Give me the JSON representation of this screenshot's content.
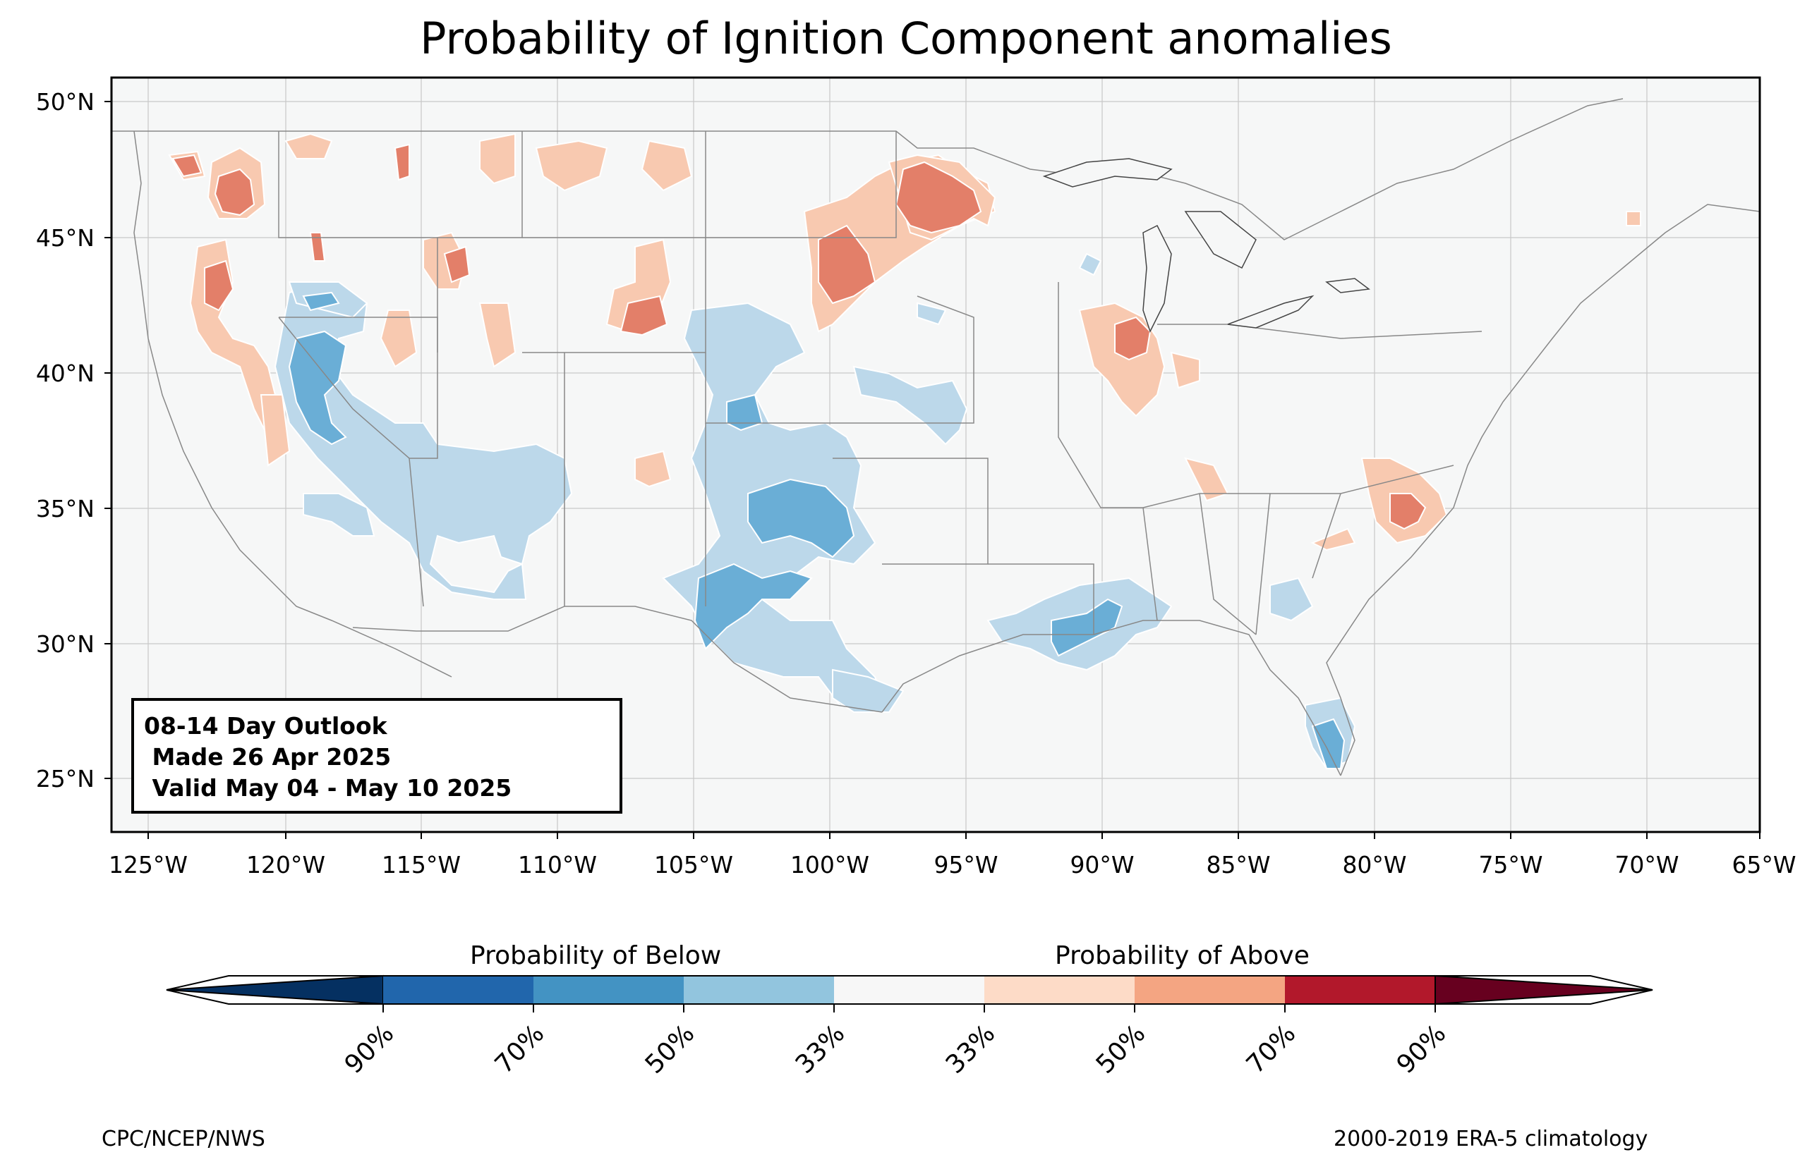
{
  "title": "Probability of Ignition Component anomalies",
  "map": {
    "lon_labels": [
      "125°W",
      "120°W",
      "115°W",
      "110°W",
      "105°W",
      "100°W",
      "95°W",
      "90°W",
      "85°W",
      "80°W",
      "75°W",
      "70°W",
      "65°W"
    ],
    "lat_labels": [
      "50°N",
      "45°N",
      "40°N",
      "35°N",
      "30°N",
      "25°N"
    ],
    "extent": {
      "lon": [
        -125.5,
        -65
      ],
      "lat": [
        23,
        51
      ]
    }
  },
  "outlook": {
    "line1": "08-14 Day Outlook",
    "line2": " Made 26 Apr 2025",
    "line3": " Valid May 04 - May 10 2025"
  },
  "colorbar": {
    "below_title": "Probability of Below",
    "above_title": "Probability of Above",
    "ticks": [
      "90%",
      "70%",
      "50%",
      "33%",
      "33%",
      "50%",
      "70%",
      "90%"
    ],
    "colors": [
      "#053061",
      "#2166ac",
      "#4393c3",
      "#92c5de",
      "#d1e5f0",
      "#f7f7f7",
      "#fddbc7",
      "#f4a582",
      "#d6604d",
      "#b2182b",
      "#67001f"
    ]
  },
  "credits": {
    "left": "CPC/NCEP/NWS",
    "right": "2000-2019 ERA-5 climatology"
  }
}
